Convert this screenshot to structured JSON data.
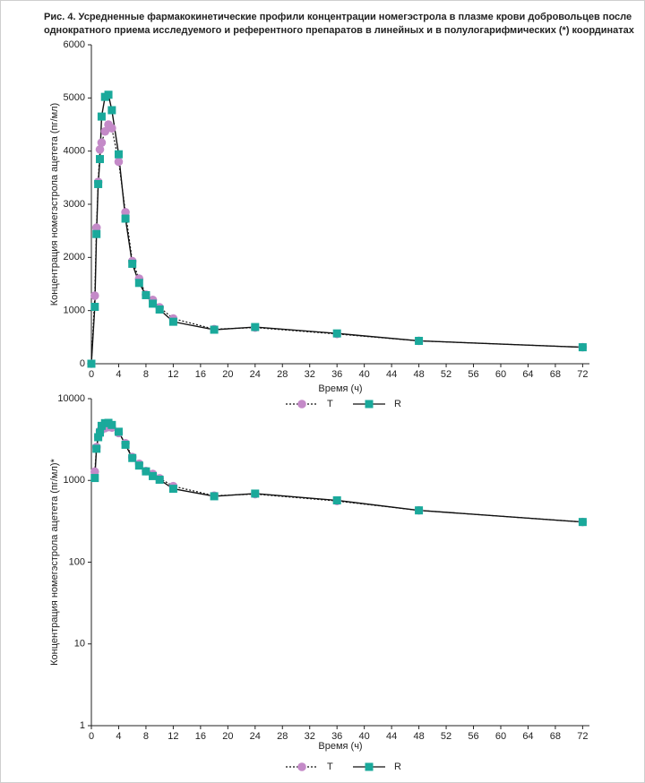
{
  "title": "Рис. 4. Усредненные фармакокинетические профили концентрации номегэстрола в плазме крови добровольцев после однократного приема исследуемого и референтного препаратов в линейных и в полулогарифмических (*) координатах",
  "chart_data": [
    {
      "type": "line",
      "ylabel": "Концентрация номегэстрола ацетета (пг/мл)",
      "xlabel": "Время (ч)",
      "x": [
        0,
        0.5,
        0.75,
        1,
        1.25,
        1.5,
        2,
        2.5,
        3,
        4,
        5,
        6,
        7,
        8,
        9,
        10,
        12,
        18,
        24,
        36,
        48,
        72
      ],
      "series": [
        {
          "name": "T",
          "color": "#c48ac8",
          "marker": "circle",
          "line_style": "dotted",
          "values": [
            0,
            1280,
            2560,
            3420,
            4030,
            4160,
            4370,
            4500,
            4430,
            3800,
            2850,
            1930,
            1600,
            1300,
            1200,
            1060,
            850,
            650,
            680,
            560,
            430,
            310
          ]
        },
        {
          "name": "R",
          "color": "#1aa99b",
          "marker": "square",
          "line_style": "solid",
          "values": [
            0,
            1070,
            2440,
            3380,
            3850,
            4650,
            5020,
            5060,
            4770,
            3940,
            2730,
            1880,
            1520,
            1290,
            1130,
            1020,
            790,
            640,
            690,
            570,
            430,
            310
          ]
        }
      ],
      "xlim": [
        0,
        73
      ],
      "xticks": [
        0,
        4,
        8,
        12,
        16,
        20,
        24,
        28,
        32,
        36,
        40,
        44,
        48,
        52,
        56,
        60,
        64,
        68,
        72
      ],
      "ylim": [
        0,
        6000
      ],
      "yticks": [
        0,
        1000,
        2000,
        3000,
        4000,
        5000,
        6000
      ],
      "yscale": "linear",
      "grid": false
    },
    {
      "type": "line",
      "ylabel": "Концентрация номегэстрола ацетета (пг/мл)*",
      "xlabel": "Время (ч)",
      "x": [
        0.5,
        0.75,
        1,
        1.25,
        1.5,
        2,
        2.5,
        3,
        4,
        5,
        6,
        7,
        8,
        9,
        10,
        12,
        18,
        24,
        36,
        48,
        72
      ],
      "series": [
        {
          "name": "T",
          "color": "#c48ac8",
          "marker": "circle",
          "line_style": "dotted",
          "values": [
            1280,
            2560,
            3420,
            4030,
            4160,
            4370,
            4500,
            4430,
            3800,
            2850,
            1930,
            1600,
            1300,
            1200,
            1060,
            850,
            650,
            680,
            560,
            430,
            310
          ]
        },
        {
          "name": "R",
          "color": "#1aa99b",
          "marker": "square",
          "line_style": "solid",
          "values": [
            1070,
            2440,
            3380,
            3850,
            4650,
            5020,
            5060,
            4770,
            3940,
            2730,
            1880,
            1520,
            1290,
            1130,
            1020,
            790,
            640,
            690,
            570,
            430,
            310
          ]
        }
      ],
      "xlim": [
        0,
        73
      ],
      "xticks": [
        0,
        4,
        8,
        12,
        16,
        20,
        24,
        28,
        32,
        36,
        40,
        44,
        48,
        52,
        56,
        60,
        64,
        68,
        72
      ],
      "ylim": [
        1,
        10000
      ],
      "yticks": [
        1,
        10,
        100,
        1000,
        10000
      ],
      "yscale": "log",
      "grid": false
    }
  ]
}
